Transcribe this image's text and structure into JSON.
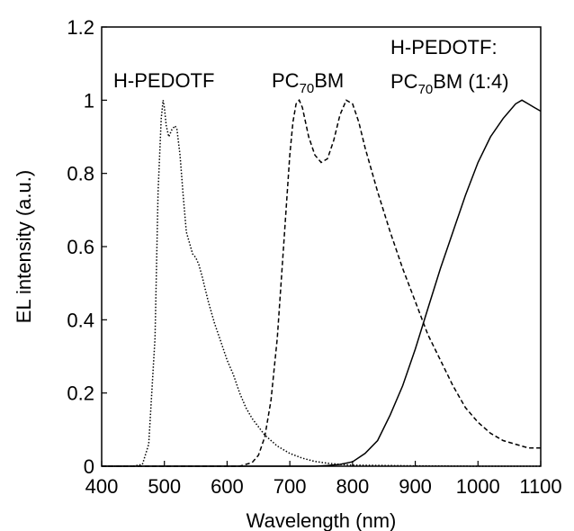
{
  "chart_data": {
    "type": "line",
    "title": "",
    "xlabel": "Wavelength (nm)",
    "ylabel": "EL intensity (a.u.)",
    "xlim": [
      400,
      1100
    ],
    "ylim": [
      0,
      1.2
    ],
    "x_ticks": [
      "400",
      "500",
      "600",
      "700",
      "800",
      "900",
      "1000",
      "1100"
    ],
    "y_ticks": [
      "0",
      "0.2",
      "0.4",
      "0.6",
      "0.8",
      "1",
      "1.2"
    ],
    "grid": false,
    "legend": "none",
    "annotations": [
      {
        "parts": [
          {
            "t": "H-PEDOTF",
            "sub": false
          }
        ]
      },
      {
        "parts": [
          {
            "t": "PC",
            "sub": false
          },
          {
            "t": "70",
            "sub": true
          },
          {
            "t": "BM",
            "sub": false
          }
        ]
      },
      {
        "parts": [
          {
            "t": "H-PEDOTF:",
            "sub": false
          }
        ]
      },
      {
        "parts": [
          {
            "t": "PC",
            "sub": false
          },
          {
            "t": "70",
            "sub": true
          },
          {
            "t": "BM (1:4)",
            "sub": false
          }
        ]
      }
    ],
    "series": [
      {
        "style": "dotted",
        "x": [
          400,
          450,
          465,
          475,
          485,
          490,
          495,
          498,
          500,
          503,
          507,
          512,
          517,
          520,
          525,
          530,
          535,
          540,
          545,
          550,
          555,
          560,
          570,
          580,
          590,
          600,
          610,
          620,
          630,
          640,
          660,
          680,
          700,
          720,
          740,
          760,
          780,
          800,
          850,
          900,
          1000,
          1100
        ],
        "y": [
          0,
          0,
          0.005,
          0.06,
          0.35,
          0.75,
          0.95,
          1.0,
          0.98,
          0.93,
          0.9,
          0.92,
          0.93,
          0.92,
          0.85,
          0.74,
          0.64,
          0.61,
          0.58,
          0.57,
          0.55,
          0.52,
          0.45,
          0.39,
          0.34,
          0.29,
          0.25,
          0.2,
          0.16,
          0.13,
          0.085,
          0.055,
          0.035,
          0.022,
          0.013,
          0.008,
          0.005,
          0.003,
          0.002,
          0.001,
          0,
          0
        ]
      },
      {
        "style": "dashed",
        "x": [
          400,
          620,
          640,
          650,
          660,
          670,
          680,
          690,
          700,
          705,
          710,
          715,
          720,
          730,
          740,
          750,
          760,
          770,
          780,
          790,
          800,
          810,
          820,
          840,
          860,
          880,
          900,
          920,
          940,
          960,
          980,
          1000,
          1020,
          1040,
          1060,
          1080,
          1100
        ],
        "y": [
          0,
          0,
          0.01,
          0.03,
          0.08,
          0.18,
          0.35,
          0.6,
          0.85,
          0.94,
          0.99,
          1.0,
          0.98,
          0.9,
          0.85,
          0.83,
          0.84,
          0.89,
          0.96,
          1.0,
          0.99,
          0.94,
          0.87,
          0.75,
          0.64,
          0.54,
          0.45,
          0.36,
          0.29,
          0.22,
          0.16,
          0.12,
          0.09,
          0.07,
          0.06,
          0.05,
          0.05
        ]
      },
      {
        "style": "solid",
        "x": [
          400,
          700,
          740,
          760,
          780,
          800,
          820,
          840,
          860,
          880,
          900,
          920,
          940,
          960,
          980,
          1000,
          1020,
          1040,
          1060,
          1070,
          1080,
          1090,
          1100
        ],
        "y": [
          0,
          0,
          0.0,
          0.002,
          0.005,
          0.012,
          0.035,
          0.07,
          0.14,
          0.22,
          0.32,
          0.43,
          0.54,
          0.64,
          0.74,
          0.83,
          0.9,
          0.95,
          0.99,
          1.0,
          0.99,
          0.98,
          0.97
        ]
      }
    ]
  }
}
